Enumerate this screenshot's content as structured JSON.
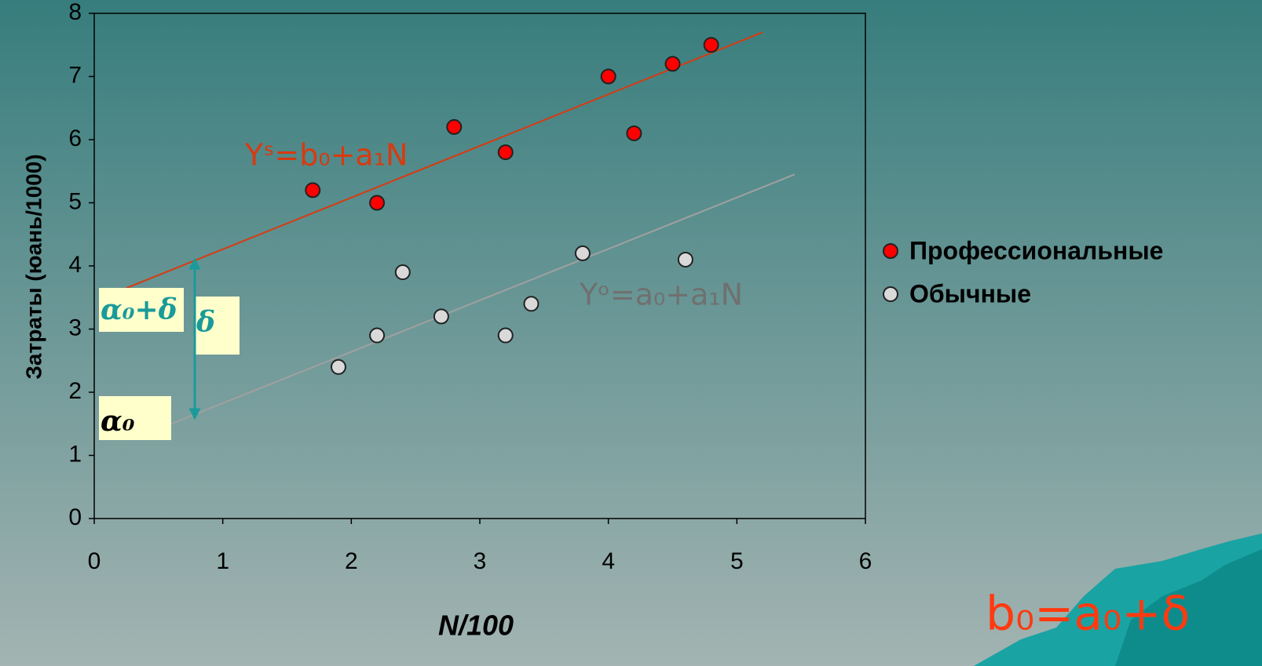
{
  "chart_data": {
    "type": "scatter",
    "xlabel": "N/100",
    "ylabel": "Затраты (юань/1000)",
    "xlim": [
      0,
      6
    ],
    "xticks": [
      0,
      1,
      2,
      3,
      4,
      5,
      6
    ],
    "ylim": [
      0,
      8
    ],
    "yticks": [
      0,
      1,
      2,
      3,
      4,
      5,
      6,
      7,
      8
    ],
    "series": [
      {
        "name": "Профессиональные",
        "color": "#ff0000",
        "x": [
          1.7,
          2.2,
          2.8,
          3.2,
          4.0,
          4.2,
          4.5,
          4.8
        ],
        "values": [
          5.2,
          5.0,
          6.2,
          5.8,
          7.0,
          6.1,
          7.2,
          7.5
        ],
        "trend": {
          "x": [
            0.25,
            5.2
          ],
          "y": [
            3.65,
            7.7
          ]
        },
        "trend_color": "#d83a10"
      },
      {
        "name": "Обычные",
        "color": "#d9d9d9",
        "x": [
          1.9,
          2.2,
          2.4,
          2.7,
          3.2,
          3.4,
          3.8,
          4.6
        ],
        "values": [
          2.4,
          2.9,
          3.9,
          3.2,
          2.9,
          3.4,
          4.2,
          4.1
        ],
        "trend": {
          "x": [
            0.6,
            5.45
          ],
          "y": [
            1.5,
            5.45
          ]
        },
        "trend_color": "#a0a0a0"
      }
    ],
    "annotations": {
      "fit_professional": "Yˢ=b₀+a₁N",
      "fit_ordinary": "Yᵒ=a₀+a₁N",
      "a0_delta": "α₀+δ",
      "delta": "δ",
      "a0": "α₀",
      "formula": "b₀=a₀+δ"
    }
  }
}
